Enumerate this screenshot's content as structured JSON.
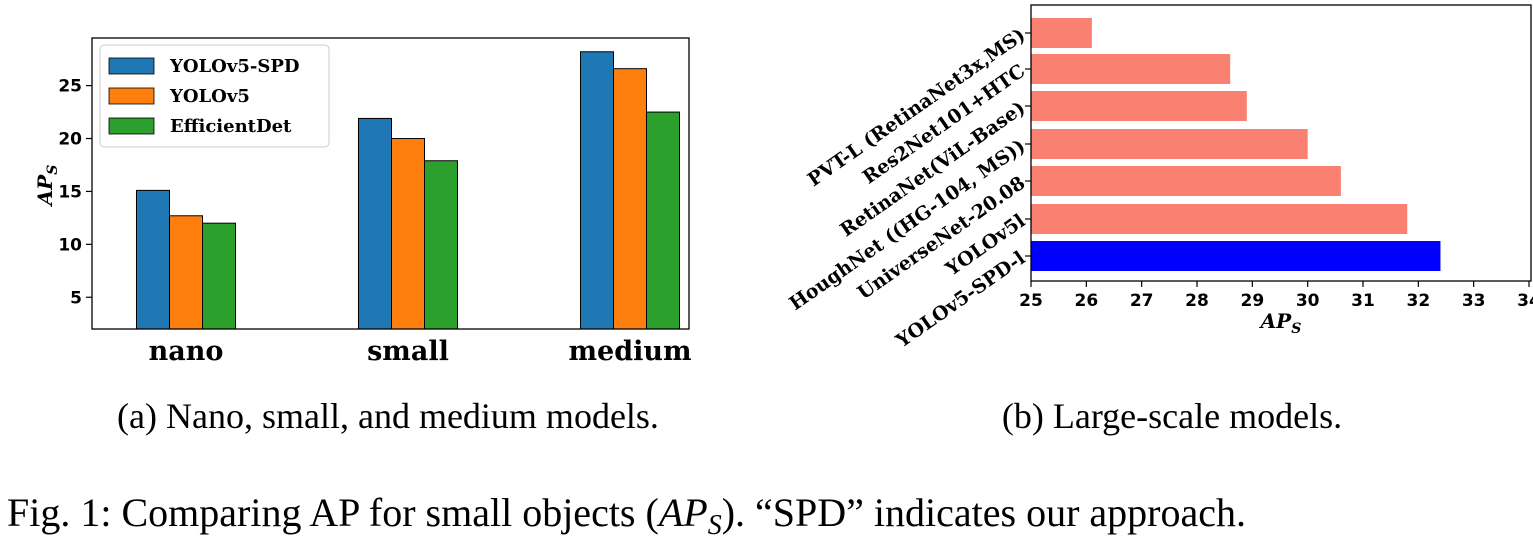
{
  "chart_data": [
    {
      "type": "bar",
      "title": "",
      "categories": [
        "nano",
        "small",
        "medium"
      ],
      "series": [
        {
          "name": "YOLOv5-SPD",
          "values": [
            15.1,
            21.9,
            28.2
          ],
          "color": "#1f77b4"
        },
        {
          "name": "YOLOv5",
          "values": [
            12.7,
            20.0,
            26.6
          ],
          "color": "#ff7f0e"
        },
        {
          "name": "EfficientDet",
          "values": [
            12.0,
            17.9,
            22.5
          ],
          "color": "#2ca02c"
        }
      ],
      "ylabel": "AP",
      "ylabel_sub": "S",
      "yticks": [
        5,
        10,
        15,
        20,
        25
      ],
      "ylim": [
        2.0,
        29.5
      ],
      "legend_position": "upper-left",
      "caption": "(a) Nano, small, and medium models."
    },
    {
      "type": "barh",
      "title": "",
      "categories": [
        "PVT-L (RetinaNet3x,MS)",
        "Res2Net101+HTC",
        "RetinaNet(ViL-Base)",
        "HoughNet ((HG-104, MS))",
        "UniverseNet-20.08",
        "YOLOv5l",
        "YOLOv5-SPD-l"
      ],
      "values": [
        26.1,
        28.6,
        28.9,
        30.0,
        30.6,
        31.8,
        32.4
      ],
      "colors": [
        "#fa8072",
        "#fa8072",
        "#fa8072",
        "#fa8072",
        "#fa8072",
        "#fa8072",
        "#0000ff"
      ],
      "xlabel": "AP",
      "xlabel_sub": "S",
      "xticks": [
        25,
        26,
        27,
        28,
        29,
        30,
        31,
        32,
        33,
        34
      ],
      "xlim": [
        25,
        34
      ],
      "caption": "(b) Large-scale models."
    }
  ],
  "figure_caption": {
    "prefix": "Fig. 1: Comparing AP for small objects (",
    "math": "AP",
    "math_sub": "S",
    "suffix": "). “SPD” indicates our approach."
  }
}
